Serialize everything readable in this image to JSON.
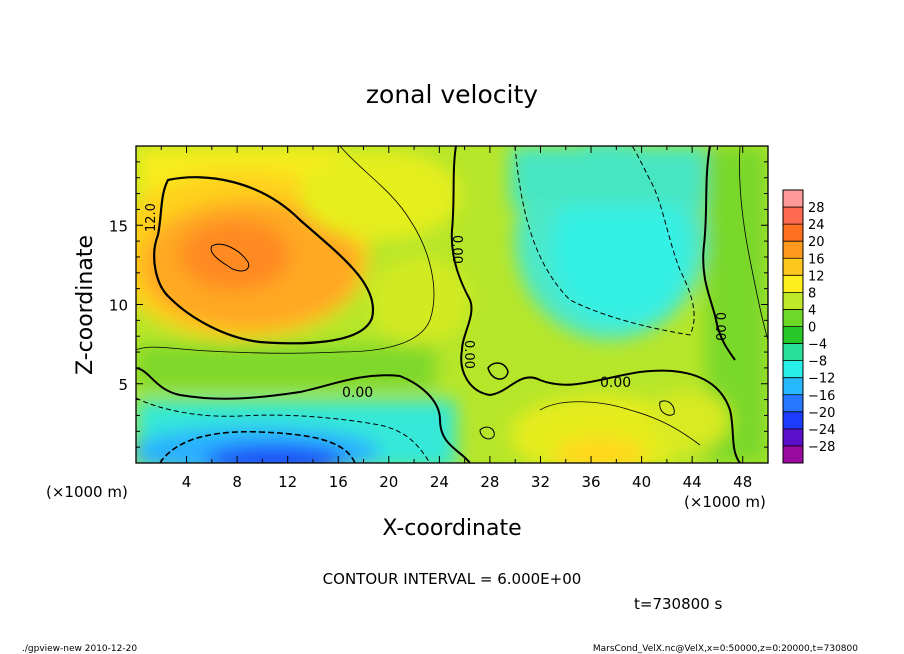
{
  "chart_data": {
    "type": "heatmap",
    "title": "zonal velocity",
    "xlabel": "X-coordinate",
    "ylabel": "Z-coordinate",
    "x_unit_note": "(×1000 m)",
    "x_unit_note_right": "(×1000 m)",
    "xlim": [
      0,
      50
    ],
    "ylim": [
      0,
      20
    ],
    "x_ticks": [
      "4",
      "8",
      "12",
      "16",
      "20",
      "24",
      "28",
      "32",
      "36",
      "40",
      "44",
      "48"
    ],
    "x_tick_values": [
      4,
      8,
      12,
      16,
      20,
      24,
      28,
      32,
      36,
      40,
      44,
      48
    ],
    "y_ticks": [
      "5",
      "10",
      "15"
    ],
    "y_tick_values": [
      5,
      10,
      15
    ],
    "colorbar_ticks": [
      "28",
      "24",
      "20",
      "16",
      "12",
      "8",
      "4",
      "0",
      "−4",
      "−8",
      "−12",
      "−16",
      "−20",
      "−24",
      "−28"
    ],
    "colorbar_levels": [
      28,
      24,
      20,
      16,
      12,
      8,
      4,
      0,
      -4,
      -8,
      -12,
      -16,
      -20,
      -24,
      -28
    ],
    "colorbar_colors": [
      "#ff9a9a",
      "#ff6a50",
      "#ff7020",
      "#ff9a1e",
      "#ffc81e",
      "#ffee1e",
      "#bfe828",
      "#6ed828",
      "#28c828",
      "#28e09a",
      "#28f0e8",
      "#28b8ff",
      "#2878ff",
      "#1e3cff",
      "#5a10c8",
      "#9a0aa0"
    ],
    "contour_labels": [
      "12.0",
      "0.00",
      "0.00",
      "0.00",
      "0.00",
      "0.00"
    ],
    "contour_interval": "CONTOUR INTERVAL = 6.000E+00",
    "time": "t=730800 s",
    "footer_left": "./gpview-new 2010-12-20",
    "footer_right": "MarsCond_VelX.nc@VelX,x=0:50000,z=0:20000,t=730800"
  }
}
